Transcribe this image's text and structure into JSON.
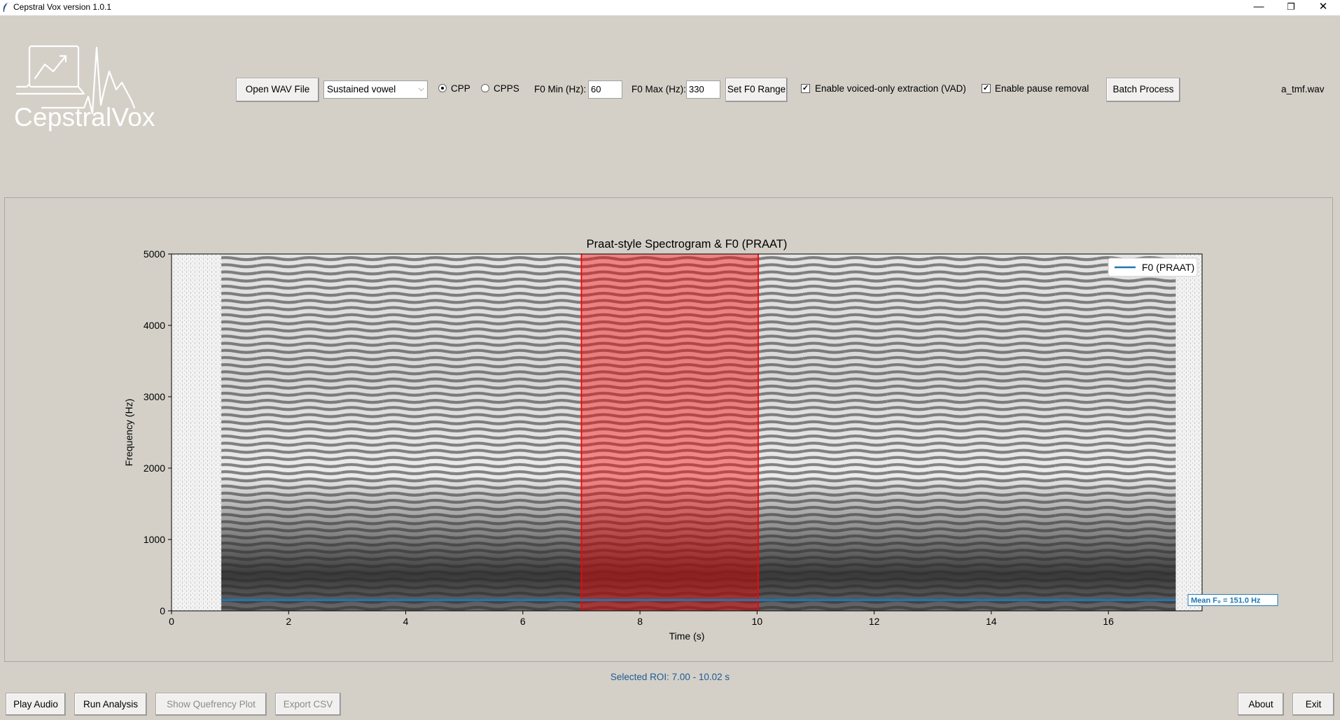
{
  "window": {
    "title": "Cepstral Vox version 1.0.1",
    "minimize": "—",
    "restore": "❐",
    "close": "✕"
  },
  "logo": {
    "text": "CepstralVox"
  },
  "toolbar": {
    "open_wav": "Open WAV File",
    "task_select": "Sustained vowel",
    "radio_cpp": "CPP",
    "radio_cpps": "CPPS",
    "f0_min_label": "F0 Min (Hz):",
    "f0_min_value": "60",
    "f0_max_label": "F0 Max (Hz):",
    "f0_max_value": "330",
    "set_f0_range": "Set F0 Range",
    "vad_label": "Enable voiced-only extraction (VAD)",
    "vad_checked": true,
    "pause_label": "Enable pause removal",
    "pause_checked": true,
    "batch_process": "Batch Process",
    "filename": "a_tmf.wav"
  },
  "chart_data": {
    "type": "spectrogram",
    "title": "Praat-style Spectrogram & F0 (PRAAT)",
    "xlabel": "Time (s)",
    "ylabel": "Frequency (Hz)",
    "xlim": [
      0,
      17.6
    ],
    "ylim": [
      0,
      5000
    ],
    "xticks": [
      0,
      2,
      4,
      6,
      8,
      10,
      12,
      14,
      16
    ],
    "yticks": [
      0,
      1000,
      2000,
      3000,
      4000,
      5000
    ],
    "legend": {
      "entries": [
        "F0 (PRAAT)"
      ],
      "placement": "top-right"
    },
    "series": [
      {
        "name": "F0 (PRAAT)",
        "x": [
          0.85,
          17.15
        ],
        "y": [
          151.0,
          151.0
        ],
        "color": "#1f77b4"
      }
    ],
    "roi": {
      "start": 7.0,
      "end": 10.02,
      "color": "#ff0000"
    },
    "annotation": "Mean F₀ = 151.0 Hz",
    "voiced_range": [
      0.85,
      17.15
    ]
  },
  "status": {
    "roi_text": "Selected ROI: 7.00 - 10.02 s"
  },
  "bottom": {
    "play_audio": "Play Audio",
    "run_analysis": "Run Analysis",
    "show_quefrency": "Show Quefrency Plot",
    "export_csv": "Export CSV",
    "about": "About",
    "exit": "Exit"
  }
}
